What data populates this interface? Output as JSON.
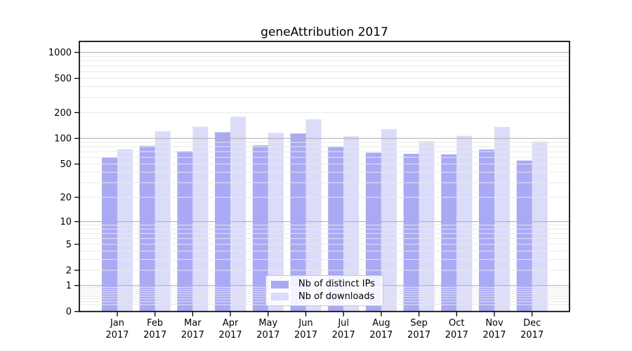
{
  "title": "geneAttribution 2017",
  "chart_data": {
    "type": "bar",
    "title": "geneAttribution 2017",
    "categories": [
      "Jan",
      "Feb",
      "Mar",
      "Apr",
      "May",
      "Jun",
      "Jul",
      "Aug",
      "Sep",
      "Oct",
      "Nov",
      "Dec"
    ],
    "year": "2017",
    "series": [
      {
        "name": "Nb of distinct IPs",
        "color": "#a9a9f5",
        "values": [
          60,
          82,
          71,
          118,
          83,
          114,
          80,
          68,
          66,
          65,
          74,
          55
        ]
      },
      {
        "name": "Nb of downloads",
        "color": "#dbdbfa",
        "values": [
          75,
          121,
          137,
          179,
          116,
          167,
          106,
          128,
          93,
          107,
          136,
          92
        ]
      }
    ],
    "yscale": "log10(1+v)",
    "y_ticks": [
      0,
      1,
      2,
      5,
      10,
      20,
      50,
      100,
      200,
      500,
      1000
    ],
    "ylim": [
      0,
      1300
    ],
    "grid": {
      "major_values": [
        1,
        10,
        100,
        1000
      ],
      "major_color": "#b4b4b4",
      "minor_color": "#e9e9e9"
    },
    "legend_position": "lower center",
    "axis_color": "#000000"
  }
}
